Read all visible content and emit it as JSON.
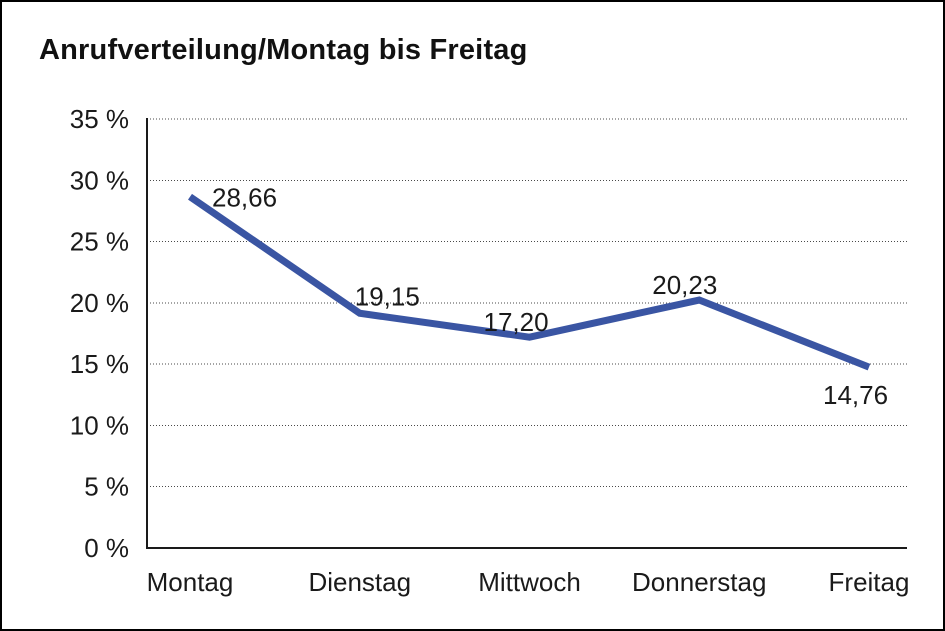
{
  "chart_data": {
    "type": "line",
    "title": "Anrufverteilung/Montag bis Freitag",
    "categories": [
      "Montag",
      "Dienstag",
      "Mittwoch",
      "Donnerstag",
      "Freitag"
    ],
    "values": [
      28.66,
      19.15,
      17.2,
      20.23,
      14.76
    ],
    "value_labels": [
      "28,66",
      "19,15",
      "17,20",
      "20,23",
      "14,76"
    ],
    "xlabel": "",
    "ylabel": "",
    "ylim": [
      0,
      35
    ],
    "yticks": [
      {
        "value": 0,
        "label": "0 %"
      },
      {
        "value": 5,
        "label": "5 %"
      },
      {
        "value": 10,
        "label": "10 %"
      },
      {
        "value": 15,
        "label": "15 %"
      },
      {
        "value": 20,
        "label": "20 %"
      },
      {
        "value": 25,
        "label": "25 %"
      },
      {
        "value": 30,
        "label": "30 %"
      },
      {
        "value": 35,
        "label": "35 %"
      }
    ],
    "grid": "horizontal-dotted",
    "legend": "none",
    "colors": {
      "series": "#3A55A3",
      "axis": "#1a1a1a",
      "grid": "#4a4a4a",
      "text": "#1a1a1a",
      "background": "#ffffff",
      "frame_border": "#000000"
    }
  }
}
